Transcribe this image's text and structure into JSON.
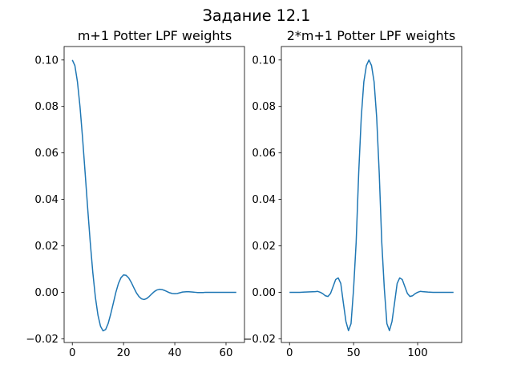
{
  "figure": {
    "suptitle": "Задание 12.1"
  },
  "chart_data": [
    {
      "type": "line",
      "title": "m+1 Potter LPF weights",
      "xlabel": "",
      "ylabel": "",
      "xlim": [
        -3.2,
        67.2
      ],
      "ylim": [
        -0.0216,
        0.1058
      ],
      "xticks": [
        0,
        20,
        40,
        60
      ],
      "xtick_labels": [
        "0",
        "20",
        "40",
        "60"
      ],
      "yticks": [
        -0.02,
        0.0,
        0.02,
        0.04,
        0.06,
        0.08,
        0.1
      ],
      "ytick_labels": [
        "−0.02",
        "0.00",
        "0.02",
        "0.04",
        "0.06",
        "0.08",
        "0.10"
      ],
      "grid": false,
      "legend": "none",
      "color": "#1f77b4",
      "series": [
        {
          "x": [
            0,
            1,
            2,
            3,
            4,
            5,
            6,
            7,
            8,
            9,
            10,
            11,
            12,
            13,
            14,
            15,
            16,
            17,
            18,
            19,
            20,
            21,
            22,
            23,
            24,
            25,
            26,
            27,
            28,
            29,
            30,
            31,
            32,
            33,
            34,
            35,
            36,
            37,
            38,
            39,
            40,
            41,
            42,
            43,
            44,
            45,
            46,
            47,
            48,
            49,
            50,
            51,
            52,
            53,
            54,
            55,
            56,
            57,
            58,
            59,
            60,
            61,
            62,
            63,
            64
          ],
          "y": [
            0.1,
            0.0976,
            0.0906,
            0.0799,
            0.0664,
            0.0514,
            0.0361,
            0.0215,
            0.0085,
            -0.0021,
            -0.0098,
            -0.0146,
            -0.0166,
            -0.016,
            -0.0134,
            -0.0093,
            -0.0047,
            0.0,
            0.0038,
            0.0063,
            0.0075,
            0.0073,
            0.0062,
            0.0043,
            0.002,
            -0.0002,
            -0.0018,
            -0.0028,
            -0.0031,
            -0.0027,
            -0.0018,
            -0.0007,
            0.0003,
            0.001,
            0.0013,
            0.0012,
            0.0008,
            0.0003,
            -0.0002,
            -0.0005,
            -0.0006,
            -0.0005,
            -0.0002,
            0.0001,
            0.0002,
            0.0003,
            0.0002,
            0.0001,
            0.0,
            -0.0001,
            -0.0001,
            -0.0001,
            0.0,
            0.0,
            0.0,
            0.0,
            0.0,
            0.0,
            0.0,
            0.0,
            0.0,
            0.0,
            0.0,
            0.0,
            0.0
          ]
        }
      ]
    },
    {
      "type": "line",
      "title": "2*m+1 Potter LPF weights",
      "xlabel": "",
      "ylabel": "",
      "xlim": [
        -6.4,
        134.4
      ],
      "ylim": [
        -0.0216,
        0.1058
      ],
      "xticks": [
        0,
        50,
        100
      ],
      "xtick_labels": [
        "0",
        "50",
        "100"
      ],
      "yticks": [
        -0.02,
        0.0,
        0.02,
        0.04,
        0.06,
        0.08,
        0.1
      ],
      "ytick_labels": [
        "−0.02",
        "0.00",
        "0.02",
        "0.04",
        "0.06",
        "0.08",
        "0.10"
      ],
      "grid": false,
      "legend": "none",
      "color": "#1f77b4",
      "series": [
        {
          "x": [
            0,
            4,
            8,
            12,
            16,
            20,
            22,
            24,
            26,
            28,
            30,
            32,
            34,
            36,
            38,
            40,
            42,
            44,
            46,
            48,
            50,
            52,
            54,
            56,
            58,
            60,
            62,
            64,
            66,
            68,
            70,
            72,
            74,
            76,
            78,
            80,
            82,
            84,
            86,
            88,
            90,
            92,
            94,
            96,
            98,
            100,
            102,
            104,
            106,
            108,
            112,
            116,
            120,
            124,
            128
          ],
          "y": [
            0.0,
            0.0,
            0.0,
            0.0001,
            0.0002,
            0.0003,
            0.0004,
            0.0,
            -0.0006,
            -0.0015,
            -0.0018,
            -0.0005,
            0.0025,
            0.0055,
            0.0062,
            0.0038,
            -0.0045,
            -0.0125,
            -0.0165,
            -0.0135,
            0.0015,
            0.0215,
            0.0515,
            0.0755,
            0.0906,
            0.0976,
            0.1,
            0.0976,
            0.0906,
            0.0755,
            0.0515,
            0.0215,
            0.0015,
            -0.0135,
            -0.0165,
            -0.0125,
            -0.0045,
            0.0038,
            0.0062,
            0.0055,
            0.0025,
            -0.0005,
            -0.0018,
            -0.0015,
            -0.0006,
            0.0,
            0.0004,
            0.0003,
            0.0002,
            0.0001,
            0.0,
            0.0,
            0.0,
            0.0,
            0.0
          ]
        }
      ]
    }
  ]
}
